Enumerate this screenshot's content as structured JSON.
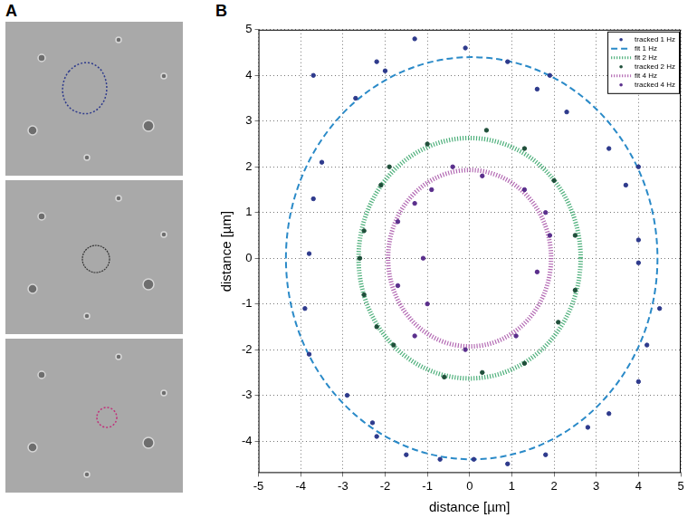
{
  "panel_labels": [
    "A",
    "B"
  ],
  "chart_data": {
    "type": "scatter",
    "x_label": "distance [µm]",
    "y_label": "distance [µm]",
    "xlim": [
      -5,
      5
    ],
    "ylim": [
      -4.7,
      5
    ],
    "xticks": [
      -5,
      -4,
      -3,
      -2,
      -1,
      0,
      1,
      2,
      3,
      4,
      5
    ],
    "yticks": [
      -4,
      -3,
      -2,
      -1,
      0,
      1,
      2,
      3,
      4,
      5
    ],
    "grid": true,
    "legend": "northeast",
    "series": [
      {
        "name": "tracked 1 Hz",
        "type": "scatter",
        "marker": "dot",
        "color": "#2e3a8c",
        "x": [
          -1.3,
          -0.1,
          0.9,
          1.6,
          2.3,
          -2.2,
          -2.0,
          -3.7,
          -2.7,
          -3.5,
          -3.7,
          -3.8,
          -3.9,
          -3.8,
          -2.9,
          -2.3,
          -2.2,
          -1.5,
          -0.7,
          0.1,
          0.9,
          1.8,
          2.8,
          3.3,
          4.0,
          4.2,
          4.5,
          4.0,
          4.0,
          3.7,
          4.0,
          3.3,
          1.9
        ],
        "values": [
          4.8,
          4.6,
          4.3,
          3.7,
          3.2,
          4.3,
          4.1,
          4.0,
          3.5,
          2.1,
          1.3,
          0.1,
          -1.1,
          -2.1,
          -3.0,
          -3.6,
          -3.9,
          -4.3,
          -4.4,
          -4.4,
          -4.5,
          -4.3,
          -3.7,
          -3.4,
          -2.7,
          -1.9,
          -1.1,
          0.4,
          -0.1,
          1.6,
          2.0,
          2.4,
          4.0
        ]
      },
      {
        "name": "fit 1 Hz",
        "type": "circle",
        "line_style": "dashed",
        "color": "#2a8ac8",
        "center": [
          0.05,
          0
        ],
        "radius": 4.4
      },
      {
        "name": "fit 2 Hz",
        "type": "circle",
        "line_style": "dotted",
        "color": "#4fb07c",
        "center": [
          0,
          0
        ],
        "radius": 2.63
      },
      {
        "name": "tracked 2 Hz",
        "type": "scatter",
        "marker": "dot",
        "color": "#1f4f3a",
        "x": [
          -1.0,
          0.4,
          1.3,
          2.0,
          -1.9,
          -2.1,
          -2.5,
          -2.6,
          -2.5,
          -2.2,
          -1.8,
          -0.6,
          0.3,
          1.3,
          2.1,
          2.5,
          2.5
        ],
        "values": [
          2.5,
          2.8,
          2.4,
          1.7,
          2.0,
          1.6,
          0.6,
          0.0,
          -0.8,
          -1.5,
          -1.9,
          -2.6,
          -2.5,
          -2.3,
          -1.4,
          -0.7,
          0.5
        ]
      },
      {
        "name": "fit 4 Hz",
        "type": "circle",
        "line_style": "dotted",
        "color": "#b36ab3",
        "center": [
          0,
          0
        ],
        "radius": 1.93
      },
      {
        "name": "tracked 4 Hz",
        "type": "scatter",
        "marker": "dot",
        "color": "#5a2f8c",
        "x": [
          -0.4,
          0.3,
          1.3,
          -0.9,
          -1.3,
          -1.7,
          -1.1,
          -1.7,
          -1.0,
          -1.3,
          -0.1,
          1.1,
          1.6,
          1.9,
          1.8
        ],
        "values": [
          2.0,
          1.8,
          1.5,
          1.5,
          1.2,
          0.8,
          0.0,
          -0.6,
          -1.0,
          -1.7,
          -2.0,
          -1.7,
          -0.3,
          0.5,
          1.0
        ]
      }
    ]
  }
}
